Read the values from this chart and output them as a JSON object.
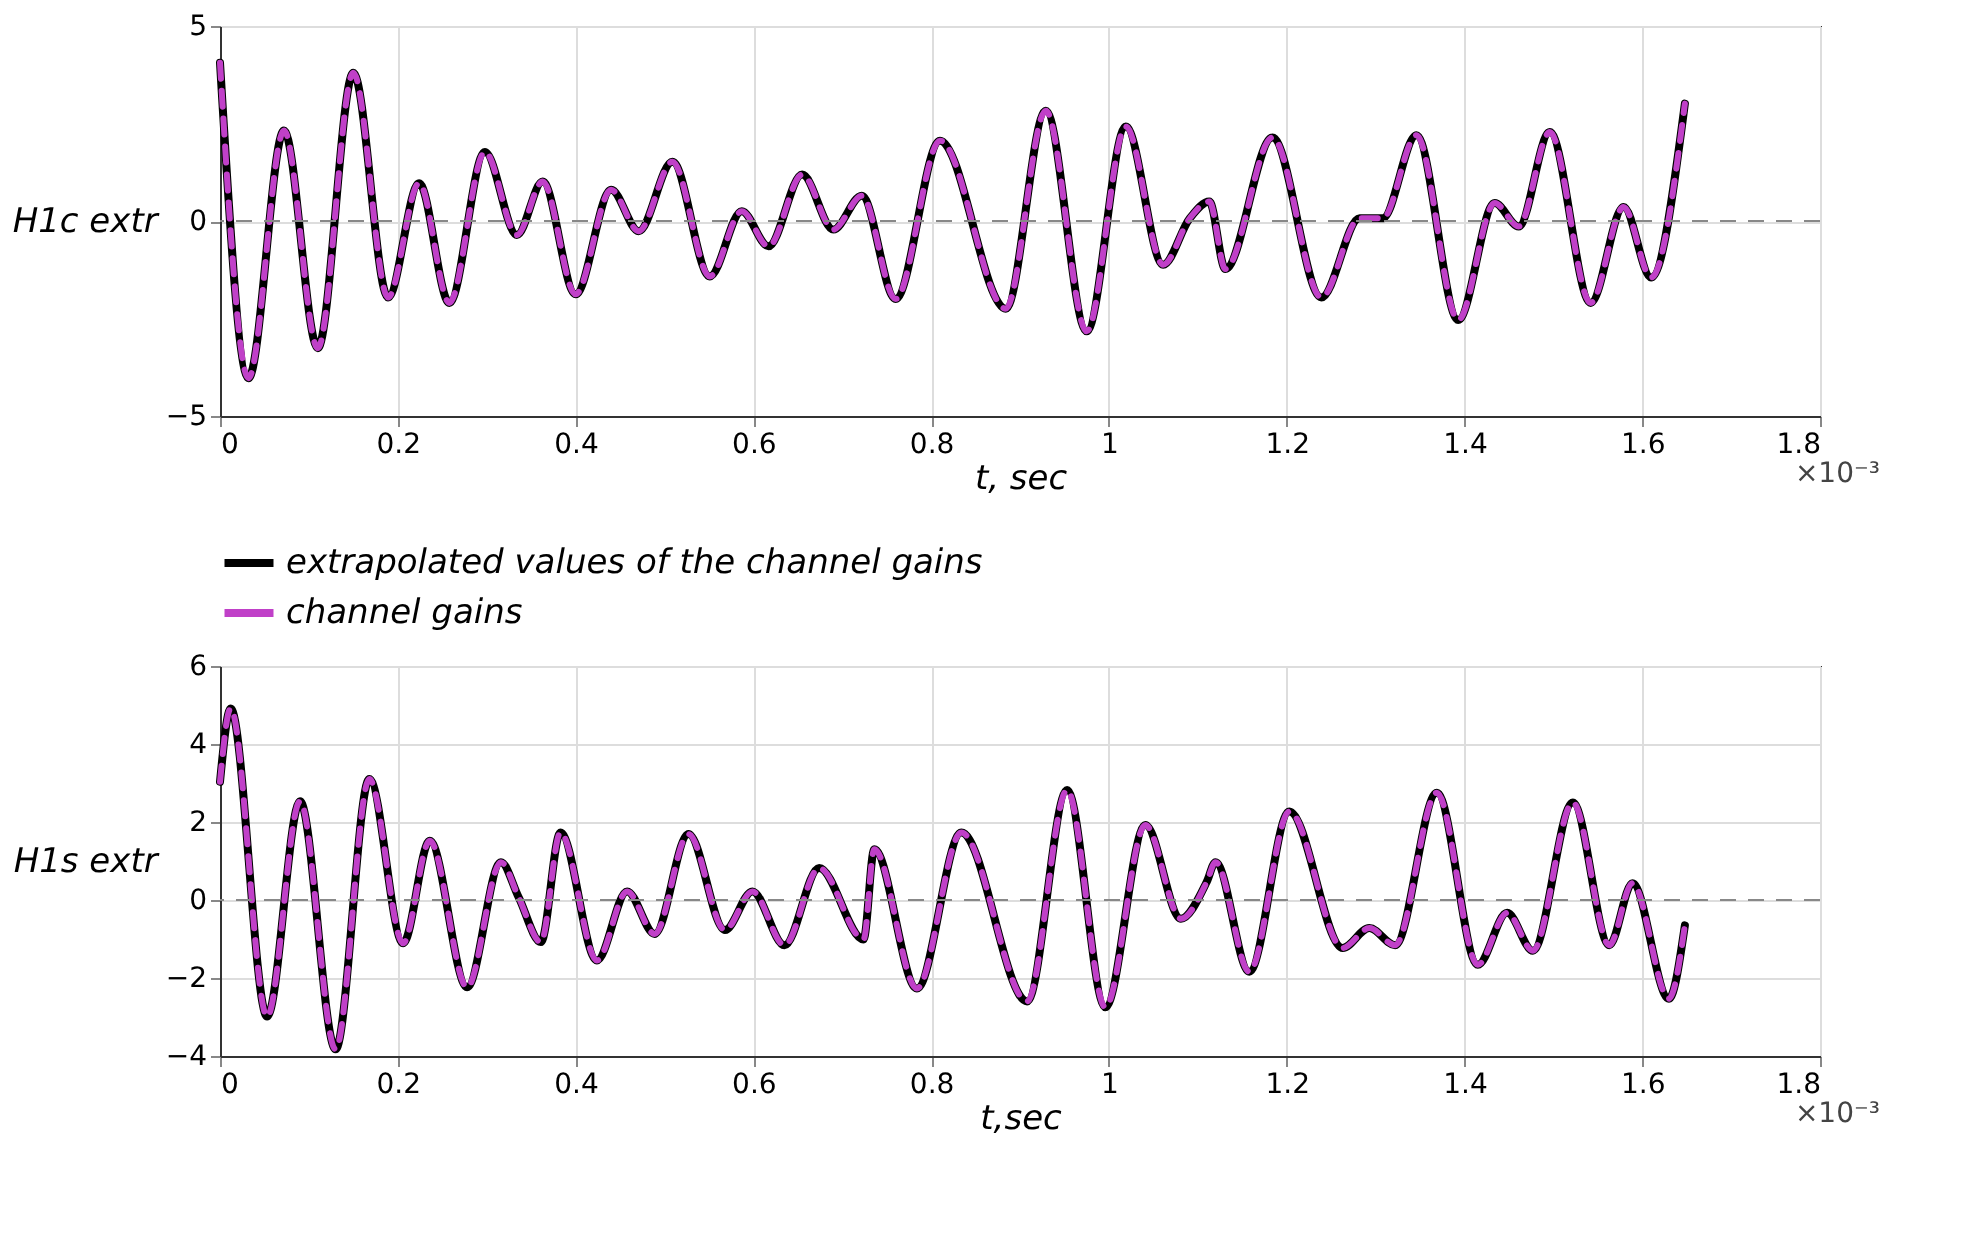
{
  "chart_data": [
    {
      "type": "line",
      "xlabel": "t, sec",
      "ylabel": "H1c extr",
      "xlim": [
        0,
        1.8
      ],
      "xticks": [
        0,
        0.2,
        0.4,
        0.6,
        0.8,
        1,
        1.2,
        1.4,
        1.6,
        1.8
      ],
      "ylim": [
        -5,
        5
      ],
      "yticks": [
        -5,
        0,
        5
      ],
      "grid": true,
      "legend": false,
      "annotations": [
        "×10⁻³"
      ],
      "ref_lines": [
        {
          "axis": "y",
          "value": 0,
          "color": "#888888",
          "line_style": "dashed"
        }
      ],
      "x": [
        0,
        0.032,
        0.072,
        0.11,
        0.15,
        0.189,
        0.224,
        0.258,
        0.298,
        0.334,
        0.363,
        0.4,
        0.44,
        0.471,
        0.509,
        0.551,
        0.587,
        0.617,
        0.655,
        0.69,
        0.722,
        0.76,
        0.81,
        0.884,
        0.929,
        0.975,
        1.019,
        1.061,
        1.091,
        1.113,
        1.131,
        1.184,
        1.239,
        1.282,
        1.308,
        1.346,
        1.393,
        1.434,
        1.461,
        1.496,
        1.542,
        1.579,
        1.61,
        1.648
      ],
      "series": [
        {
          "color": "#000000",
          "line_style": "solid",
          "values": [
            4.06,
            -4.03,
            2.32,
            -3.26,
            3.8,
            -1.96,
            0.97,
            -2.1,
            1.77,
            -0.36,
            1.01,
            -1.88,
            0.8,
            -0.26,
            1.52,
            -1.42,
            0.25,
            -0.65,
            1.19,
            -0.22,
            0.65,
            -2.0,
            2.06,
            -2.25,
            2.83,
            -2.83,
            2.42,
            -1.12,
            0.07,
            0.5,
            -1.23,
            2.14,
            -1.96,
            0.07,
            0.07,
            2.2,
            -2.54,
            0.46,
            -0.14,
            2.28,
            -2.1,
            0.36,
            -1.45,
            3.01
          ]
        },
        {
          "color": "#c040c8",
          "line_style": "dashed",
          "values": [
            4.06,
            -4.03,
            2.32,
            -3.26,
            3.8,
            -1.96,
            0.97,
            -2.1,
            1.77,
            -0.36,
            1.01,
            -1.88,
            0.8,
            -0.26,
            1.52,
            -1.42,
            0.25,
            -0.65,
            1.19,
            -0.22,
            0.65,
            -2.0,
            2.06,
            -2.25,
            2.83,
            -2.83,
            2.42,
            -1.12,
            0.07,
            0.5,
            -1.23,
            2.14,
            -1.96,
            0.07,
            0.07,
            2.2,
            -2.54,
            0.46,
            -0.14,
            2.28,
            -2.1,
            0.36,
            -1.45,
            3.01
          ]
        }
      ]
    },
    {
      "type": "line",
      "xlabel": "t,sec",
      "ylabel": "H1s extr",
      "xlim": [
        0,
        1.8
      ],
      "xticks": [
        0,
        0.2,
        0.4,
        0.6,
        0.8,
        1,
        1.2,
        1.4,
        1.6,
        1.8
      ],
      "ylim": [
        -4,
        6
      ],
      "yticks": [
        -4,
        -2,
        0,
        2,
        4,
        6
      ],
      "grid": true,
      "legend": "top",
      "annotations": [
        "×10⁻³"
      ],
      "ref_lines": [
        {
          "axis": "y",
          "value": 0,
          "color": "#888888",
          "line_style": "dashed"
        }
      ],
      "x": [
        0,
        0.012,
        0.053,
        0.09,
        0.13,
        0.168,
        0.206,
        0.236,
        0.278,
        0.316,
        0.336,
        0.361,
        0.383,
        0.424,
        0.458,
        0.489,
        0.527,
        0.568,
        0.599,
        0.635,
        0.674,
        0.724,
        0.736,
        0.784,
        0.834,
        0.908,
        0.953,
        0.996,
        1.041,
        1.081,
        1.11,
        1.12,
        1.158,
        1.203,
        1.263,
        1.293,
        1.322,
        1.369,
        1.415,
        1.448,
        1.477,
        1.522,
        1.563,
        1.589,
        1.63,
        1.648
      ],
      "series": [
        {
          "name": "extrapolated values of the channel gains",
          "color": "#000000",
          "line_style": "solid",
          "values": [
            3.03,
            4.91,
            -2.99,
            2.53,
            -3.83,
            3.1,
            -1.11,
            1.52,
            -2.24,
            0.97,
            0.07,
            -1.08,
            1.73,
            -1.55,
            0.22,
            -0.87,
            1.69,
            -0.77,
            0.22,
            -1.16,
            0.82,
            -1.01,
            1.3,
            -2.27,
            1.73,
            -2.6,
            2.82,
            -2.75,
            1.92,
            -0.48,
            0.46,
            0.97,
            -1.84,
            2.27,
            -1.23,
            -0.72,
            -1.16,
            2.75,
            -1.66,
            -0.33,
            -1.3,
            2.5,
            -1.16,
            0.43,
            -2.53,
            -0.65
          ]
        },
        {
          "name": "channel gains",
          "color": "#c040c8",
          "line_style": "dashed",
          "values": [
            3.03,
            4.91,
            -2.99,
            2.53,
            -3.83,
            3.1,
            -1.11,
            1.52,
            -2.24,
            0.97,
            0.07,
            -1.08,
            1.73,
            -1.55,
            0.22,
            -0.87,
            1.69,
            -0.77,
            0.22,
            -1.16,
            0.82,
            -1.01,
            1.3,
            -2.27,
            1.73,
            -2.6,
            2.82,
            -2.75,
            1.92,
            -0.48,
            0.46,
            0.97,
            -1.84,
            2.27,
            -1.23,
            -0.72,
            -1.16,
            2.75,
            -1.66,
            -0.33,
            -1.3,
            2.5,
            -1.16,
            0.43,
            -2.53,
            -0.65
          ]
        }
      ]
    }
  ]
}
